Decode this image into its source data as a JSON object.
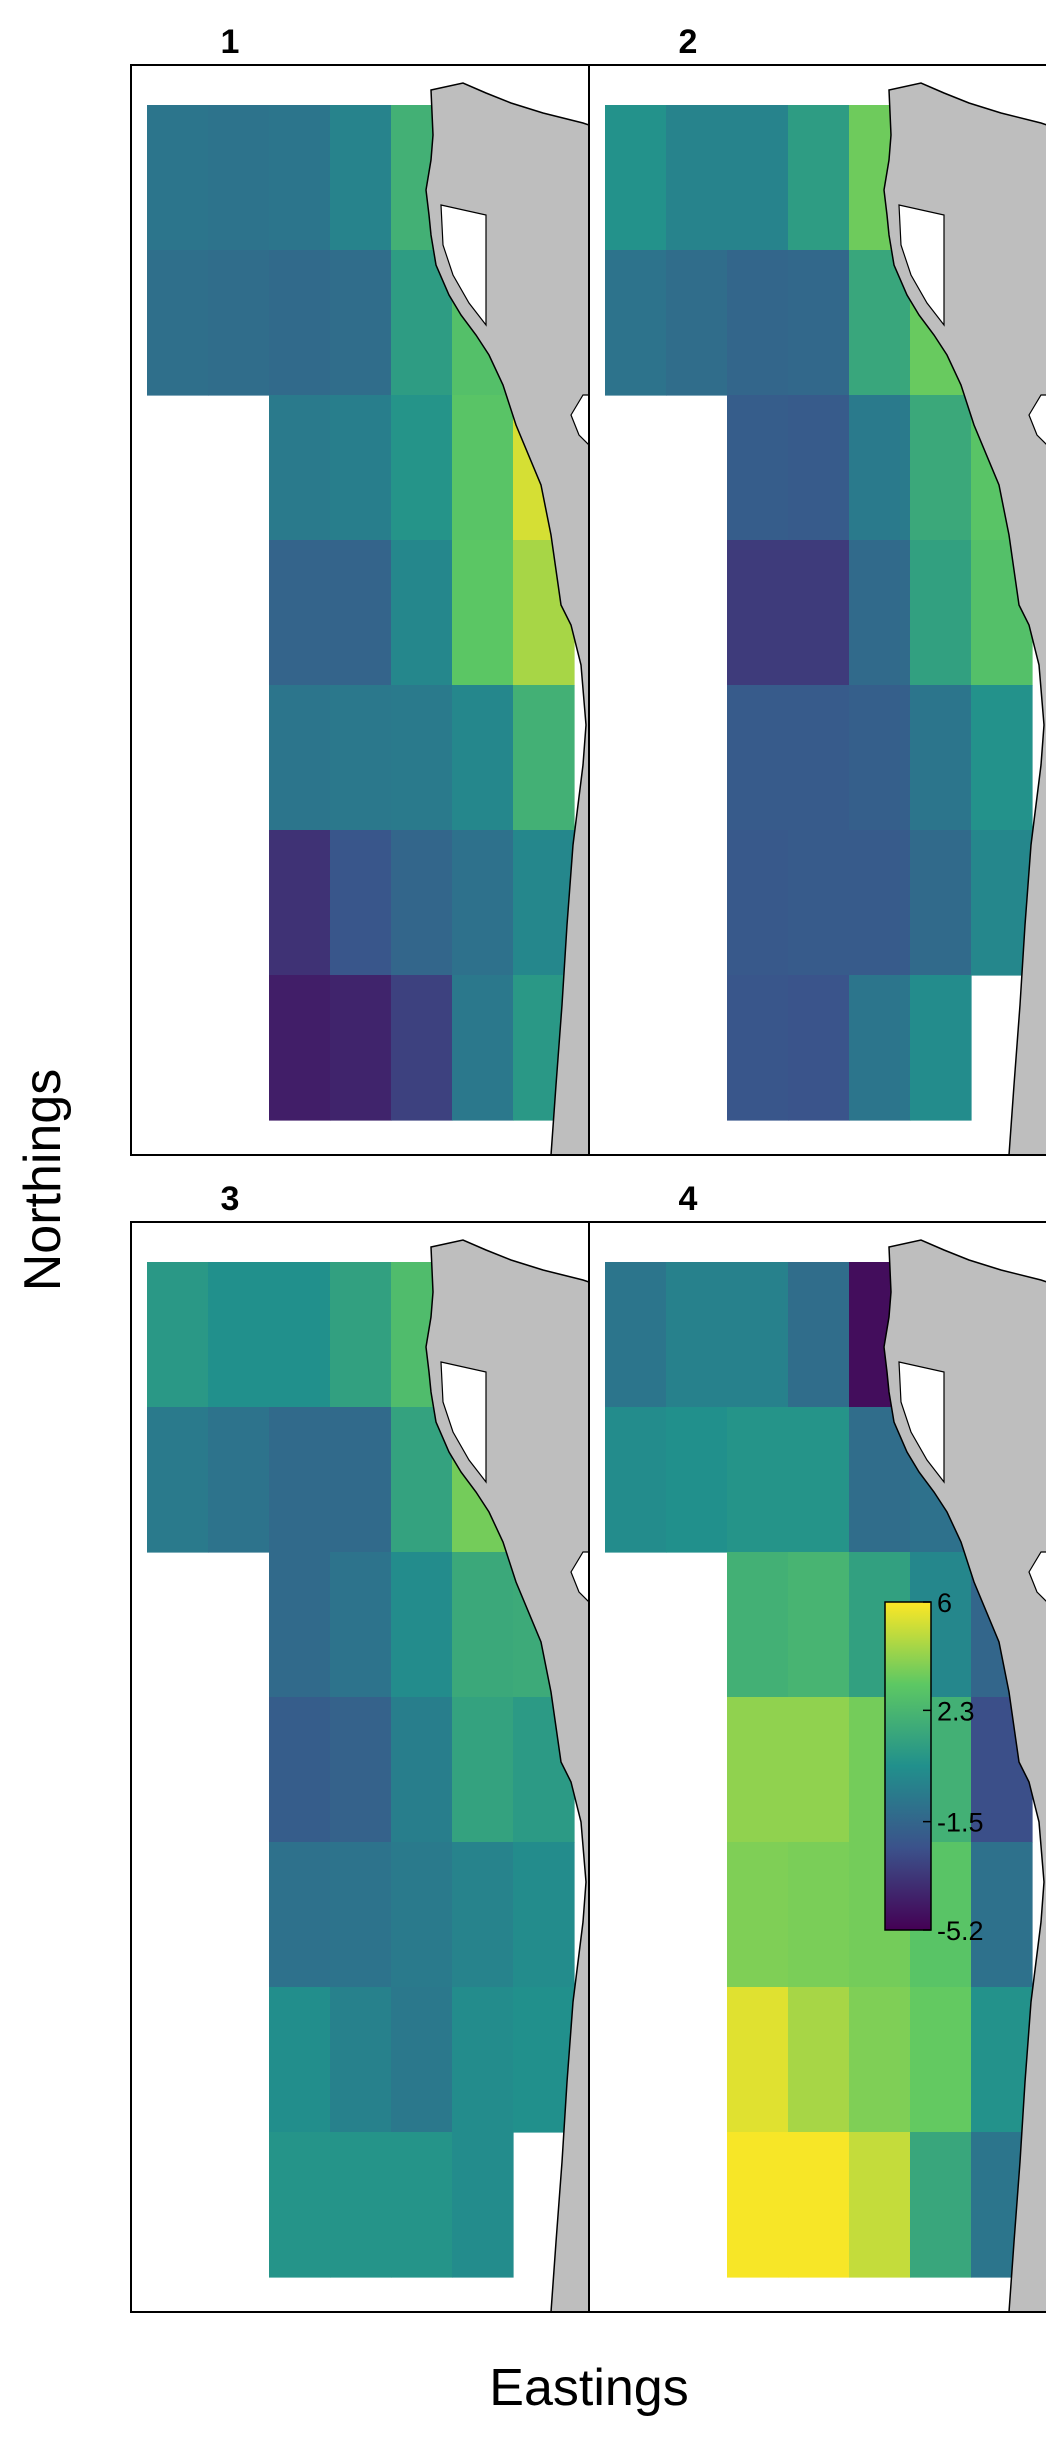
{
  "chart_data": {
    "type": "heatmap",
    "xlabel": "Eastings",
    "ylabel": "Northings",
    "legend": {
      "position": "inside-bottom-right",
      "min": -5.2,
      "max": 6,
      "ticks": [
        6,
        2.3,
        -1.5,
        -5.2
      ],
      "tick_labels": [
        "6",
        "2.3",
        "-1.5",
        "-5.2"
      ],
      "palette": [
        "#440154",
        "#3b528b",
        "#21908c",
        "#5dc863",
        "#fde725"
      ]
    },
    "grid": {
      "columns": 8,
      "rows": 7,
      "cell_mask": [
        [
          1,
          1,
          1,
          1,
          1,
          0,
          0,
          0
        ],
        [
          1,
          1,
          1,
          1,
          1,
          1,
          0,
          0
        ],
        [
          0,
          0,
          1,
          1,
          1,
          1,
          1,
          0
        ],
        [
          0,
          0,
          1,
          1,
          1,
          1,
          1,
          0
        ],
        [
          0,
          0,
          1,
          1,
          1,
          1,
          1,
          0
        ],
        [
          0,
          0,
          1,
          1,
          1,
          1,
          1,
          0
        ],
        [
          0,
          0,
          1,
          1,
          1,
          1,
          1,
          0
        ]
      ]
    },
    "panels": [
      {
        "title": "1",
        "values": [
          [
            -0.8,
            -0.9,
            -0.8,
            -0.2,
            2.0,
            null,
            null,
            null
          ],
          [
            -1.1,
            -1.2,
            -1.3,
            -1.2,
            1.0,
            2.8,
            null,
            null
          ],
          [
            null,
            null,
            -0.6,
            -0.4,
            0.6,
            3.0,
            5.3,
            null
          ],
          [
            null,
            null,
            -1.6,
            -1.6,
            0.0,
            3.1,
            4.5,
            null
          ],
          [
            null,
            null,
            -0.8,
            -0.7,
            -0.6,
            0.0,
            2.0,
            null
          ],
          [
            null,
            null,
            -3.5,
            -2.2,
            -1.5,
            -1.0,
            0.0,
            null
          ],
          [
            null,
            null,
            -4.2,
            -4.0,
            -3.0,
            -0.7,
            0.8,
            null
          ]
        ]
      },
      {
        "title": "2",
        "values": [
          [
            0.5,
            -0.2,
            -0.2,
            1.0,
            3.5,
            null,
            null,
            null
          ],
          [
            -0.9,
            -1.2,
            -1.5,
            -1.4,
            1.5,
            3.4,
            null,
            null
          ],
          [
            null,
            null,
            -1.9,
            -2.0,
            -0.6,
            1.6,
            3.0,
            null
          ],
          [
            null,
            null,
            -3.2,
            -3.2,
            -1.3,
            1.2,
            2.8,
            null
          ],
          [
            null,
            null,
            -2.0,
            -2.0,
            -1.8,
            -0.8,
            0.5,
            null
          ],
          [
            null,
            null,
            -2.1,
            -2.0,
            -2.0,
            -1.3,
            0.0,
            null
          ],
          [
            null,
            null,
            -2.2,
            -2.3,
            -0.8,
            0.2,
            null,
            null
          ]
        ]
      },
      {
        "title": "3",
        "values": [
          [
            0.8,
            0.4,
            0.4,
            1.2,
            2.6,
            null,
            null,
            null
          ],
          [
            -0.6,
            -0.9,
            -1.3,
            -1.3,
            1.3,
            3.6,
            null,
            null
          ],
          [
            null,
            null,
            -1.3,
            -0.9,
            0.2,
            1.6,
            1.7,
            null
          ],
          [
            null,
            null,
            -1.9,
            -1.7,
            -0.4,
            1.3,
            0.9,
            null
          ],
          [
            null,
            null,
            -1.0,
            -0.9,
            -0.6,
            -0.2,
            0.2,
            null
          ],
          [
            null,
            null,
            0.3,
            -0.3,
            -0.7,
            0.2,
            0.4,
            null
          ],
          [
            null,
            null,
            0.6,
            0.6,
            0.6,
            0.2,
            null,
            null
          ]
        ]
      },
      {
        "title": "4",
        "values": [
          [
            -0.8,
            -0.3,
            -0.3,
            -1.2,
            -4.8,
            null,
            null,
            null
          ],
          [
            0.2,
            0.4,
            0.6,
            0.6,
            -1.2,
            -1.0,
            null,
            null
          ],
          [
            null,
            null,
            2.0,
            2.2,
            1.2,
            0.0,
            -1.5,
            null
          ],
          [
            null,
            null,
            4.1,
            4.1,
            3.6,
            2.0,
            -2.5,
            null
          ],
          [
            null,
            null,
            3.8,
            3.7,
            3.6,
            3.0,
            -1.0,
            null
          ],
          [
            null,
            null,
            5.5,
            4.5,
            3.8,
            3.3,
            0.5,
            null
          ],
          [
            null,
            null,
            5.9,
            5.9,
            5.0,
            1.5,
            -0.8,
            null
          ]
        ]
      }
    ]
  }
}
